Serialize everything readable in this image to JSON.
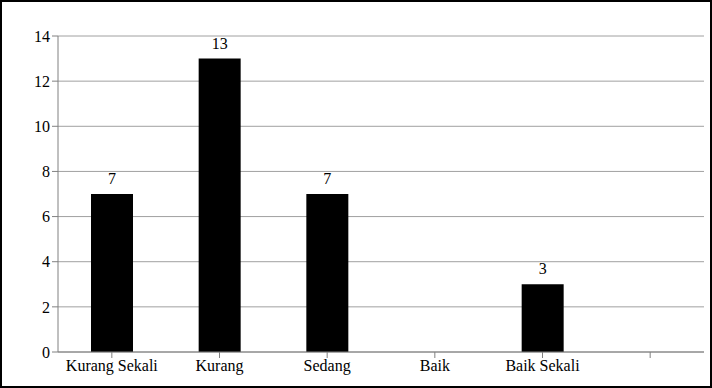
{
  "chart_data": {
    "type": "bar",
    "categories": [
      "Kurang Sekali",
      "Kurang",
      "Sedang",
      "Baik",
      "Baik Sekali",
      null
    ],
    "values": [
      7,
      13,
      7,
      0,
      3,
      null
    ],
    "color": "#000000",
    "ylim": [
      0,
      14
    ],
    "yticks": [
      0,
      2,
      4,
      6,
      8,
      10,
      12,
      14
    ],
    "grid": true,
    "data_labels": true
  }
}
